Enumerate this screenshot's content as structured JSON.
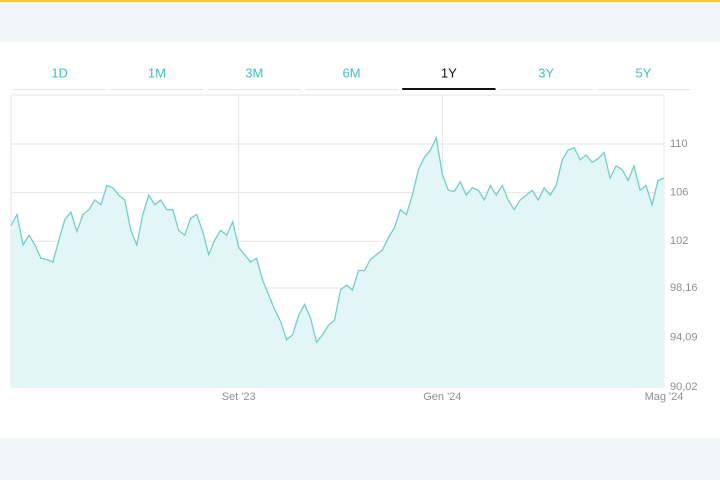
{
  "tabs": [
    {
      "label": "1D",
      "selected": false
    },
    {
      "label": "1M",
      "selected": false
    },
    {
      "label": "3M",
      "selected": false
    },
    {
      "label": "6M",
      "selected": false
    },
    {
      "label": "1Y",
      "selected": true
    },
    {
      "label": "3Y",
      "selected": false
    },
    {
      "label": "5Y",
      "selected": false
    }
  ],
  "chart_data": {
    "type": "area",
    "color": "#6fd0c8",
    "fill": "#e3f6f7",
    "grid": true,
    "xlim": [
      0,
      109
    ],
    "xticks": [
      {
        "value": 38,
        "label": "Set '23"
      },
      {
        "value": 72,
        "label": "Gen '24"
      },
      {
        "value": 109,
        "label": "Mag '24"
      }
    ],
    "ylim": [
      90.02,
      114.03
    ],
    "yticks": [
      {
        "value": 90.02,
        "label": "90,02"
      },
      {
        "value": 94.09,
        "label": "94,09"
      },
      {
        "value": 98.16,
        "label": "98,16"
      },
      102,
      106,
      110
    ],
    "values": [
      103.3,
      104.2,
      101.7,
      102.5,
      101.7,
      100.6,
      100.5,
      100.3,
      102.1,
      103.8,
      104.4,
      102.8,
      104.2,
      104.6,
      105.4,
      105.0,
      106.6,
      106.4,
      105.8,
      105.4,
      102.9,
      101.7,
      104.2,
      105.8,
      105.0,
      105.4,
      104.6,
      104.6,
      102.9,
      102.5,
      103.9,
      104.2,
      102.8,
      100.9,
      102.1,
      102.9,
      102.5,
      103.6,
      101.5,
      100.9,
      100.3,
      100.6,
      98.8,
      97.6,
      96.4,
      95.4,
      93.9,
      94.3,
      95.9,
      96.8,
      95.7,
      93.7,
      94.3,
      95.1,
      95.5,
      98.0,
      98.4,
      98.0,
      99.6,
      99.6,
      100.5,
      100.9,
      101.3,
      102.3,
      103.1,
      104.6,
      104.2,
      105.8,
      107.9,
      108.9,
      109.5,
      110.5,
      107.5,
      106.2,
      106.1,
      106.9,
      105.8,
      106.4,
      106.2,
      105.4,
      106.6,
      105.8,
      106.6,
      105.4,
      104.6,
      105.4,
      105.8,
      106.2,
      105.4,
      106.4,
      105.8,
      106.6,
      108.7,
      109.5,
      109.7,
      108.7,
      109.1,
      108.5,
      108.8,
      109.3,
      107.2,
      108.2,
      107.9,
      107.0,
      108.2,
      106.2,
      106.6,
      105.0,
      107.0,
      107.2
    ]
  }
}
